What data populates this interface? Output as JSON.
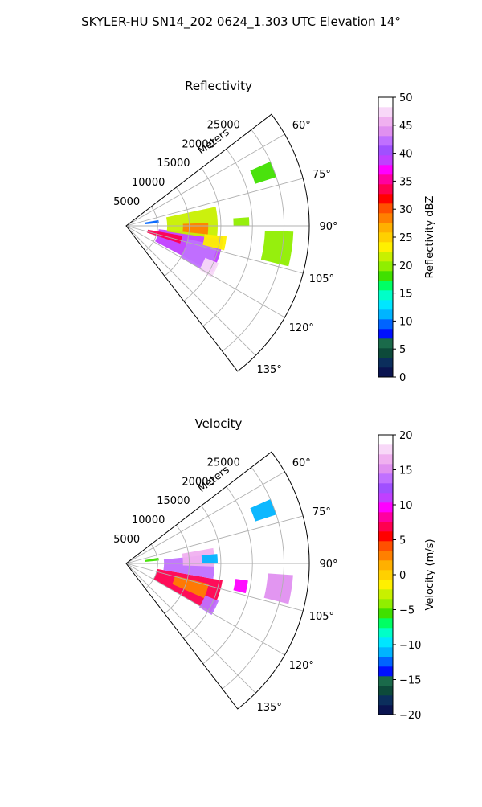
{
  "figure": {
    "suptitle": "SKYLER-HU  SN14_202  0624_1.303 UTC Elevation 14°"
  },
  "chart_data": [
    {
      "type": "heatmap",
      "projection": "polar-sector",
      "title": "Reflectivity",
      "range_label": "Meters",
      "range_ticks": [
        "5000",
        "10000",
        "15000",
        "20000",
        "25000"
      ],
      "range_tick_values": [
        5000,
        10000,
        15000,
        20000,
        25000
      ],
      "range_max": 29000,
      "azimuth_ticks": [
        "60°",
        "75°",
        "90°",
        "105°",
        "120°",
        "135°"
      ],
      "azimuth_tick_values": [
        60,
        75,
        90,
        105,
        120,
        135
      ],
      "azimuth_range": [
        52.5,
        142.5
      ],
      "grid": true,
      "colorbar": {
        "label": "Reflectivity dBZ",
        "min": 0,
        "max": 50,
        "ticks": [
          "0",
          "5",
          "10",
          "15",
          "20",
          "25",
          "30",
          "35",
          "40",
          "45",
          "50"
        ],
        "tick_values": [
          0,
          5,
          10,
          15,
          20,
          25,
          30,
          35,
          40,
          45,
          50
        ],
        "colors": [
          "#0a1450",
          "#0b2e5c",
          "#0d4a3a",
          "#1a6a4a",
          "#0010ff",
          "#0064ff",
          "#00b4ff",
          "#00e6ff",
          "#00ffc8",
          "#00ff64",
          "#40e000",
          "#90ee00",
          "#c8f000",
          "#fff000",
          "#ffd000",
          "#ffb000",
          "#ff8000",
          "#ff5000",
          "#ff0000",
          "#ff0050",
          "#ff00a0",
          "#ff00ff",
          "#c040ff",
          "#a050ff",
          "#c070ff",
          "#e090f0",
          "#f0b0f0",
          "#f8d8f8",
          "#ffffff"
        ]
      },
      "echoes": [
        {
          "az": [
            96,
            118
          ],
          "r": [
            5200,
            15500
          ],
          "value": 38
        },
        {
          "az": [
            102,
            120
          ],
          "r": [
            10000,
            14800
          ],
          "value": 42
        },
        {
          "az": [
            112,
            121
          ],
          "r": [
            13500,
            15800
          ],
          "value": 48
        },
        {
          "az": [
            100,
            108
          ],
          "r": [
            3500,
            9000
          ],
          "value": 34
        },
        {
          "az": [
            78,
            98
          ],
          "r": [
            6500,
            14500
          ],
          "value": 22
        },
        {
          "az": [
            88,
            96
          ],
          "r": [
            9000,
            13000
          ],
          "value": 28
        },
        {
          "az": [
            96,
            104
          ],
          "r": [
            12500,
            16000
          ],
          "value": 24
        },
        {
          "az": [
            66,
            72
          ],
          "r": [
            21500,
            25000
          ],
          "value": 18
        },
        {
          "az": [
            92,
            104
          ],
          "r": [
            22000,
            26500
          ],
          "value": 19
        },
        {
          "az": [
            86,
            90
          ],
          "r": [
            17000,
            19500
          ],
          "value": 20
        },
        {
          "az": [
            80,
            85
          ],
          "r": [
            3000,
            5200
          ],
          "value": 10
        }
      ]
    },
    {
      "type": "heatmap",
      "projection": "polar-sector",
      "title": "Velocity",
      "range_label": "Meters",
      "range_ticks": [
        "5000",
        "10000",
        "15000",
        "20000",
        "25000"
      ],
      "range_tick_values": [
        5000,
        10000,
        15000,
        20000,
        25000
      ],
      "range_max": 29000,
      "azimuth_ticks": [
        "60°",
        "75°",
        "90°",
        "105°",
        "120°",
        "135°"
      ],
      "azimuth_tick_values": [
        60,
        75,
        90,
        105,
        120,
        135
      ],
      "azimuth_range": [
        52.5,
        142.5
      ],
      "grid": true,
      "colorbar": {
        "label": "Velocity (m/s)",
        "min": -20,
        "max": 20,
        "ticks": [
          "−20",
          "−15",
          "−10",
          "−5",
          "0",
          "5",
          "10",
          "15",
          "20"
        ],
        "tick_values": [
          -20,
          -15,
          -10,
          -5,
          0,
          5,
          10,
          15,
          20
        ],
        "colors": [
          "#0a1450",
          "#0b2e5c",
          "#0d4a3a",
          "#1a6a4a",
          "#0010ff",
          "#0064ff",
          "#00b4ff",
          "#00e6ff",
          "#00ffc8",
          "#00ff64",
          "#40e000",
          "#90ee00",
          "#c8f000",
          "#fff000",
          "#ffd000",
          "#ffb000",
          "#ff8000",
          "#ff5000",
          "#ff0000",
          "#ff0050",
          "#ff00a0",
          "#ff00ff",
          "#c040ff",
          "#a050ff",
          "#c070ff",
          "#e090f0",
          "#f0b0f0",
          "#f8d8f8",
          "#ffffff"
        ]
      },
      "echoes": [
        {
          "az": [
            100,
            120
          ],
          "r": [
            5000,
            15500
          ],
          "value": 7
        },
        {
          "az": [
            104,
            114
          ],
          "r": [
            8000,
            13500
          ],
          "value": 3
        },
        {
          "az": [
            84,
            100
          ],
          "r": [
            6000,
            14000
          ],
          "value": 14
        },
        {
          "az": [
            80,
            92
          ],
          "r": [
            9000,
            14000
          ],
          "value": 16
        },
        {
          "az": [
            112,
            121
          ],
          "r": [
            13500,
            15800
          ],
          "value": 14
        },
        {
          "az": [
            84,
            90
          ],
          "r": [
            12000,
            14500
          ],
          "value": -11
        },
        {
          "az": [
            66,
            72
          ],
          "r": [
            21500,
            25000
          ],
          "value": -11
        },
        {
          "az": [
            94,
            104
          ],
          "r": [
            22500,
            26500
          ],
          "value": 15
        },
        {
          "az": [
            98,
            104
          ],
          "r": [
            17500,
            19500
          ],
          "value": 10
        },
        {
          "az": [
            80,
            85
          ],
          "r": [
            3000,
            5200
          ],
          "value": -6
        }
      ]
    }
  ]
}
